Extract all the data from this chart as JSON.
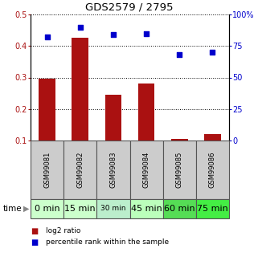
{
  "title": "GDS2579 / 2795",
  "samples": [
    "GSM99081",
    "GSM99082",
    "GSM99083",
    "GSM99084",
    "GSM99085",
    "GSM99086"
  ],
  "time_labels": [
    "0 min",
    "15 min",
    "30 min",
    "45 min",
    "60 min",
    "75 min"
  ],
  "log2_ratio": [
    0.295,
    0.425,
    0.245,
    0.28,
    0.105,
    0.12
  ],
  "percentile_rank": [
    82,
    90,
    84,
    85,
    68,
    70
  ],
  "bar_color": "#aa1111",
  "dot_color": "#0000cc",
  "ylim_left": [
    0.1,
    0.5
  ],
  "ylim_right": [
    0,
    100
  ],
  "yticks_left": [
    0.1,
    0.2,
    0.3,
    0.4,
    0.5
  ],
  "yticks_right": [
    0,
    25,
    50,
    75,
    100
  ],
  "ytick_labels_right": [
    "0",
    "25",
    "50",
    "75",
    "100%"
  ],
  "sample_bg_color": "#cccccc",
  "time_bg_colors": [
    "#ccffcc",
    "#ccffcc",
    "#bbeecc",
    "#bbffbb",
    "#55dd55",
    "#44ee44"
  ],
  "time_font_sizes": [
    8,
    8,
    6.5,
    8,
    8,
    8
  ],
  "legend_bar_label": "log2 ratio",
  "legend_dot_label": "percentile rank within the sample",
  "bar_width": 0.5,
  "dot_size": 25,
  "fig_w": 3.21,
  "fig_h": 3.45,
  "dpi": 100
}
